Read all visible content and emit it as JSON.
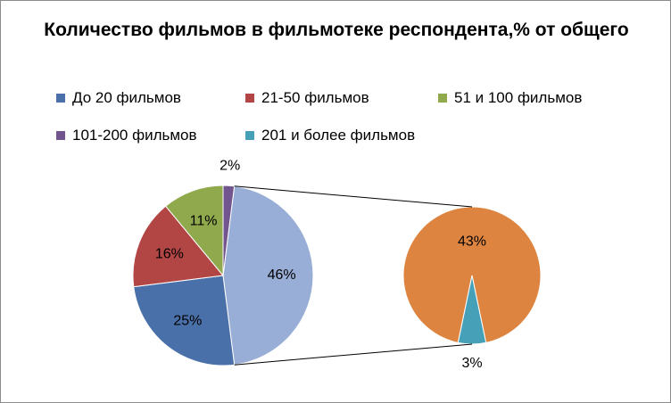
{
  "chart_data": {
    "type": "pie",
    "subtype": "pie-of-pie",
    "title": "Количество фильмов в фильмотеке респондента,% от общего",
    "legend_position": "top",
    "slices": [
      {
        "name": "До 20 фильмов",
        "value": 25,
        "label": "25%",
        "color": "#4a70aa",
        "in_secondary": false
      },
      {
        "name": "21-50 фильмов",
        "value": 16,
        "label": "16%",
        "color": "#b14644",
        "in_secondary": false
      },
      {
        "name": "51 и 100 фильмов",
        "value": 11,
        "label": "11%",
        "color": "#8fa94c",
        "in_secondary": false
      },
      {
        "name": "101-200 фильмов",
        "value": 2,
        "label": "2%",
        "color": "#72558e",
        "in_secondary": false
      },
      {
        "name": "",
        "value": 43,
        "label": "43%",
        "color": "#dd8540",
        "in_secondary": true
      },
      {
        "name": "201 и более фильмов",
        "value": 3,
        "label": "3%",
        "color": "#46a0b7",
        "in_secondary": true
      }
    ],
    "other_slice": {
      "value": 46,
      "label": "46%",
      "color": "#98aed6"
    },
    "legend": [
      {
        "label": "До 20 фильмов",
        "color": "#4a70aa"
      },
      {
        "label": "21-50 фильмов",
        "color": "#b14644"
      },
      {
        "label": "51 и 100 фильмов",
        "color": "#8fa94c"
      },
      {
        "label": "101-200 фильмов",
        "color": "#72558e"
      },
      {
        "label": "201 и более фильмов",
        "color": "#46a0b7"
      }
    ]
  }
}
